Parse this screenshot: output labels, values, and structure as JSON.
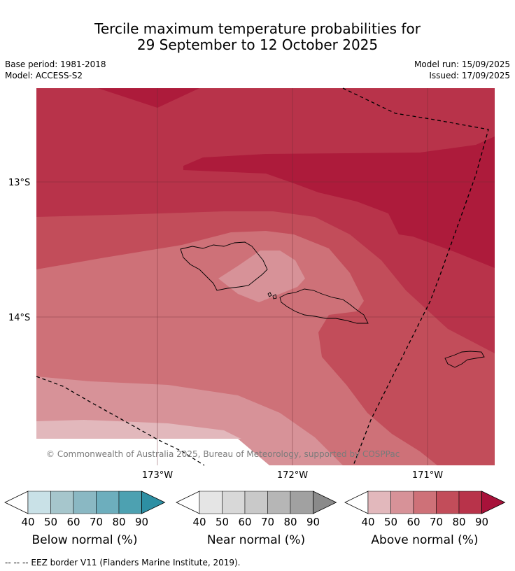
{
  "title_line1": "Tercile maximum temperature probabilities for",
  "title_line2": "29 September to 12 October 2025",
  "base_period": "Base period: 1981-2018",
  "model": "Model: ACCESS-S2",
  "model_run": "Model run: 15/09/2025",
  "issued": "Issued: 17/09/2025",
  "map": {
    "lat_labels": [
      "13°S",
      "14°S"
    ],
    "lon_labels": [
      "173°W",
      "172°W",
      "171°W"
    ],
    "copyright": "© Commonwealth of Australia 2025, Bureau of Meteorology, supported by COSPPac"
  },
  "legends": [
    {
      "name": "Below normal (%)",
      "ticks": [
        "40",
        "50",
        "60",
        "70",
        "80",
        "90"
      ],
      "colors": [
        "#c9e1e7",
        "#a6c6cc",
        "#8ab8c3",
        "#6daebd",
        "#4da1b1",
        "#2d8fa3"
      ],
      "min_color": "#ffffff"
    },
    {
      "name": "Near normal (%)",
      "ticks": [
        "40",
        "50",
        "60",
        "70",
        "80",
        "90"
      ],
      "colors": [
        "#e5e5e5",
        "#d8d8d8",
        "#c9c9c9",
        "#b6b6b6",
        "#a1a1a1",
        "#8a8a8a"
      ],
      "min_color": "#ffffff"
    },
    {
      "name": "Above normal (%)",
      "ticks": [
        "40",
        "50",
        "60",
        "70",
        "80",
        "90"
      ],
      "colors": [
        "#e2b8bc",
        "#d79298",
        "#ce7178",
        "#c24d5a",
        "#b8334a",
        "#a8123a"
      ],
      "min_color": "#ffffff"
    }
  ],
  "footer": "--  --  -- EEZ border V11 (Flanders Marine Institute, 2019)."
}
